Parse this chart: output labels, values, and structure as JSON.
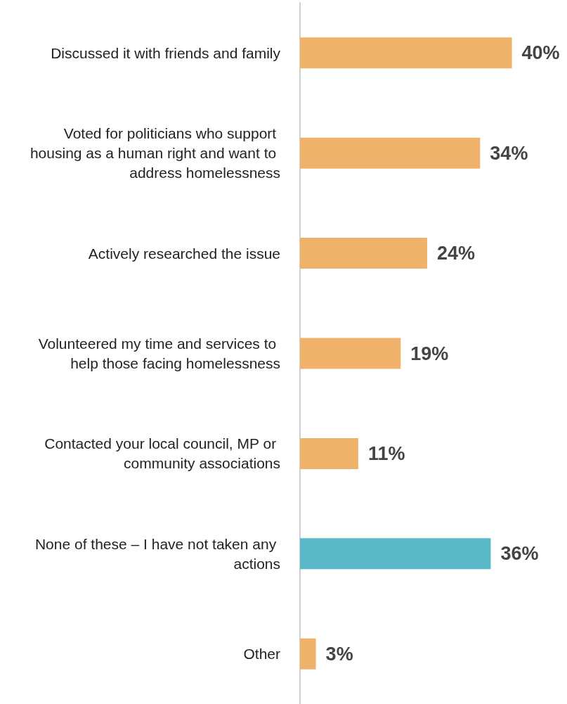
{
  "chart_data": {
    "type": "bar",
    "orientation": "horizontal",
    "categories": [
      "Discussed it with friends and family",
      "Voted for politicians who support housing as a human right and want to address homelessness",
      "Actively researched the issue",
      "Volunteered my time and services to help those facing homelessness",
      "Contacted your local council, MP or community associations",
      "None of these – I have not taken any actions",
      "Other"
    ],
    "values": [
      40,
      34,
      24,
      19,
      11,
      36,
      3
    ],
    "colors": [
      "#f0b26b",
      "#f0b26b",
      "#f0b26b",
      "#f0b26b",
      "#f0b26b",
      "#5bb8c8",
      "#f0b26b"
    ],
    "value_labels": [
      "40%",
      "34%",
      "24%",
      "19%",
      "11%",
      "36%",
      "3%"
    ]
  }
}
